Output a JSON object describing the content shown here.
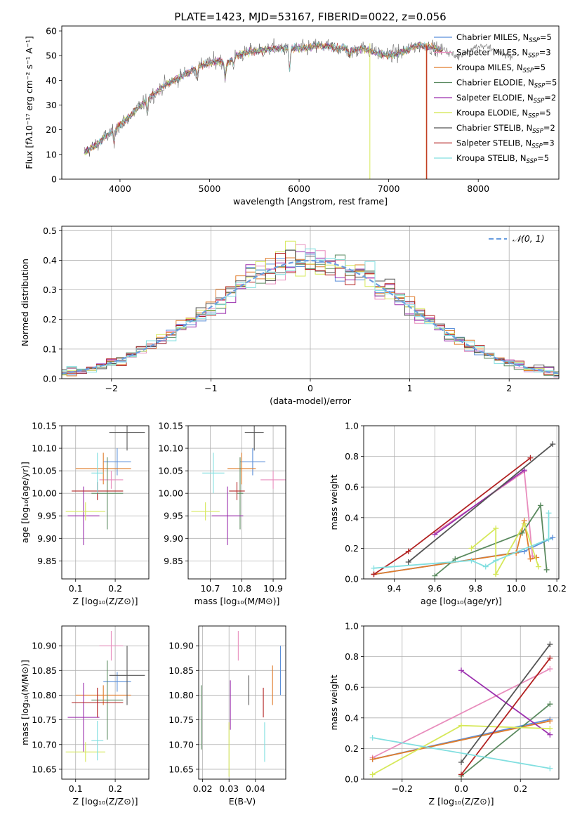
{
  "figure": {
    "title": "PLATE=1423, MJD=53167, FIBERID=0022, z=0.056"
  },
  "colors": {
    "Chabrier MILES": "#5b8fd9",
    "Salpeter MILES": "#e88dbd",
    "Kroupa MILES": "#e07c2b",
    "Chabrier ELODIE": "#5a8a5f",
    "Salpeter ELODIE": "#9b2fae",
    "Kroupa ELODIE": "#d6e85a",
    "Chabrier STELIB": "#555555",
    "Salpeter STELIB": "#b22222",
    "Kroupa STELIB": "#82dfe0",
    "normal": "#6b9fe0"
  },
  "chart_data": [
    {
      "id": "spectrum",
      "type": "line",
      "xlabel": "wavelength [Angstrom, rest frame]",
      "ylabel": "Flux [fλ10⁻¹⁷ erg cm⁻² s⁻¹ A⁻¹]",
      "xlim": [
        3350,
        8900
      ],
      "ylim": [
        0,
        62
      ],
      "xticks": [
        4000,
        5000,
        6000,
        7000,
        8000
      ],
      "yticks": [
        0,
        10,
        20,
        30,
        40,
        50,
        60
      ],
      "legend": "right",
      "legend_entries": [
        {
          "model": "Chabrier MILES",
          "label": "Chabrier MILES, N",
          "sub": "SSP",
          "n": "=5"
        },
        {
          "model": "Salpeter MILES",
          "label": "Salpeter MILES, N",
          "sub": "SSP",
          "n": "=3"
        },
        {
          "model": "Kroupa MILES",
          "label": "Kroupa MILES, N",
          "sub": "SSP",
          "n": "=5"
        },
        {
          "model": "Chabrier ELODIE",
          "label": "Chabrier ELODIE, N",
          "sub": "SSP",
          "n": "=5"
        },
        {
          "model": "Salpeter ELODIE",
          "label": "Salpeter ELODIE, N",
          "sub": "SSP",
          "n": "=2"
        },
        {
          "model": "Kroupa ELODIE",
          "label": "Kroupa ELODIE, N",
          "sub": "SSP",
          "n": "=5"
        },
        {
          "model": "Chabrier STELIB",
          "label": "Chabrier STELIB, N",
          "sub": "SSP",
          "n": "=2"
        },
        {
          "model": "Salpeter STELIB",
          "label": "Salpeter STELIB, N",
          "sub": "SSP",
          "n": "=3"
        },
        {
          "model": "Kroupa STELIB",
          "label": "Kroupa STELIB, N",
          "sub": "SSP",
          "n": "=5"
        }
      ],
      "continuum": [
        [
          3600,
          11
        ],
        [
          3700,
          13
        ],
        [
          3800,
          16
        ],
        [
          3900,
          19
        ],
        [
          4000,
          22
        ],
        [
          4100,
          25
        ],
        [
          4200,
          29
        ],
        [
          4300,
          32
        ],
        [
          4400,
          35
        ],
        [
          4500,
          38
        ],
        [
          4600,
          40
        ],
        [
          4700,
          42
        ],
        [
          4800,
          44
        ],
        [
          4900,
          46
        ],
        [
          5000,
          47
        ],
        [
          5100,
          48
        ],
        [
          5200,
          47
        ],
        [
          5300,
          50
        ],
        [
          5400,
          51
        ],
        [
          5500,
          52
        ],
        [
          5600,
          52
        ],
        [
          5700,
          53
        ],
        [
          5800,
          53
        ],
        [
          5900,
          53
        ],
        [
          6000,
          53
        ],
        [
          6100,
          53
        ],
        [
          6200,
          54
        ],
        [
          6300,
          54
        ],
        [
          6400,
          53
        ],
        [
          6500,
          53
        ],
        [
          6600,
          52
        ],
        [
          6700,
          53
        ],
        [
          6800,
          52
        ],
        [
          6900,
          51
        ],
        [
          7000,
          50
        ],
        [
          7100,
          51
        ],
        [
          7200,
          52
        ],
        [
          7300,
          54
        ],
        [
          7400,
          54
        ],
        [
          7500,
          53
        ],
        [
          7600,
          52
        ]
      ],
      "model_range": [
        3600,
        7600
      ],
      "data_range": [
        3600,
        8400
      ],
      "dips": [
        [
          3934,
          6
        ],
        [
          4305,
          5
        ],
        [
          4861,
          4
        ],
        [
          5175,
          6
        ],
        [
          5270,
          3
        ],
        [
          5893,
          10
        ],
        [
          6563,
          3
        ]
      ],
      "spikes": [
        {
          "model": "Kroupa ELODIE",
          "x": 6790,
          "y": 55
        },
        {
          "model": "Kroupa MILES",
          "x": 7420,
          "y": 55
        },
        {
          "model": "Salpeter STELIB",
          "x": 7425,
          "y": 54
        }
      ]
    },
    {
      "id": "residuals",
      "type": "histogram",
      "xlabel": "(data-model)/error",
      "ylabel": "Normed distribution",
      "xlim": [
        -2.5,
        2.5
      ],
      "ylim": [
        0,
        0.515
      ],
      "xticks": [
        -2,
        -1,
        0,
        1,
        2
      ],
      "yticks": [
        0.0,
        0.1,
        0.2,
        0.3,
        0.4,
        0.5
      ],
      "grid": true,
      "bin_width": 0.1,
      "legend": "top-right",
      "normal_label": "𝒩(0, 1)",
      "normal_label_italic": true
    },
    {
      "id": "age-Z",
      "type": "errorbar",
      "xlabel": "Z [log₁₀(Z/Z⊙)]",
      "ylabel": "age  [log₁₀(age/yr)]",
      "xlim": [
        0.065,
        0.285
      ],
      "ylim": [
        9.81,
        10.15
      ],
      "xticks": [
        0.1,
        0.2
      ],
      "yticks": [
        9.85,
        9.9,
        9.95,
        10.0,
        10.05,
        10.1,
        10.15
      ],
      "grid": true,
      "points": [
        {
          "model": "Chabrier MILES",
          "x": 0.205,
          "xerr": 0.035,
          "y": 10.07,
          "yerr": 0.03
        },
        {
          "model": "Salpeter MILES",
          "x": 0.19,
          "xerr": 0.03,
          "y": 10.03,
          "yerr": 0.02
        },
        {
          "model": "Kroupa MILES",
          "x": 0.17,
          "xerr": 0.07,
          "y": 10.055,
          "yerr": 0.035
        },
        {
          "model": "Chabrier ELODIE",
          "x": 0.18,
          "xerr": 0.04,
          "y": 10.0,
          "yerr": 0.08
        },
        {
          "model": "Salpeter ELODIE",
          "x": 0.12,
          "xerr": 0.04,
          "y": 9.95,
          "yerr": 0.065
        },
        {
          "model": "Kroupa ELODIE",
          "x": 0.125,
          "xerr": 0.05,
          "y": 9.96,
          "yerr": 0.02
        },
        {
          "model": "Chabrier STELIB",
          "x": 0.23,
          "xerr": 0.045,
          "y": 10.135,
          "yerr": 0.04
        },
        {
          "model": "Salpeter STELIB",
          "x": 0.155,
          "xerr": 0.065,
          "y": 10.005,
          "yerr": 0.02
        },
        {
          "model": "Kroupa STELIB",
          "x": 0.155,
          "xerr": 0.015,
          "y": 10.045,
          "yerr": 0.045
        }
      ]
    },
    {
      "id": "age-mass",
      "type": "errorbar",
      "xlabel": "mass [log₁₀(M/M⊙)]",
      "ylabel": "",
      "xlim": [
        10.63,
        10.94
      ],
      "ylim": [
        9.81,
        10.15
      ],
      "xticks": [
        10.7,
        10.8,
        10.9
      ],
      "yticks": [
        9.85,
        9.9,
        9.95,
        10.0,
        10.05,
        10.1,
        10.15
      ],
      "grid": true,
      "points": [
        {
          "model": "Chabrier MILES",
          "x": 10.835,
          "xerr": 0.04,
          "y": 10.07,
          "yerr": 0.03
        },
        {
          "model": "Salpeter MILES",
          "x": 10.9,
          "xerr": 0.04,
          "y": 10.03,
          "yerr": 0.02
        },
        {
          "model": "Kroupa MILES",
          "x": 10.8,
          "xerr": 0.045,
          "y": 10.055,
          "yerr": 0.035
        },
        {
          "model": "Chabrier ELODIE",
          "x": 10.795,
          "xerr": 0.01,
          "y": 10.0,
          "yerr": 0.08
        },
        {
          "model": "Salpeter ELODIE",
          "x": 10.755,
          "xerr": 0.05,
          "y": 9.95,
          "yerr": 0.065
        },
        {
          "model": "Kroupa ELODIE",
          "x": 10.685,
          "xerr": 0.045,
          "y": 9.96,
          "yerr": 0.02
        },
        {
          "model": "Chabrier STELIB",
          "x": 10.84,
          "xerr": 0.03,
          "y": 10.135,
          "yerr": 0.04
        },
        {
          "model": "Salpeter STELIB",
          "x": 10.785,
          "xerr": 0.025,
          "y": 10.005,
          "yerr": 0.02
        },
        {
          "model": "Kroupa STELIB",
          "x": 10.71,
          "xerr": 0.035,
          "y": 10.045,
          "yerr": 0.045
        }
      ]
    },
    {
      "id": "weight-age",
      "type": "line",
      "xlabel": "age  [log₁₀(age/yr)]",
      "ylabel": "mass weight",
      "xlim": [
        9.25,
        10.21
      ],
      "ylim": [
        0,
        1.0
      ],
      "xticks": [
        9.4,
        9.6,
        9.8,
        10.0,
        10.2
      ],
      "yticks": [
        0.0,
        0.2,
        0.4,
        0.6,
        0.8,
        1.0
      ],
      "grid": true,
      "series": [
        {
          "model": "Chabrier MILES",
          "x": [
            9.3,
            10.04,
            10.18
          ],
          "y": [
            0.03,
            0.18,
            0.27
          ]
        },
        {
          "model": "Salpeter MILES",
          "x": [
            9.6,
            10.04,
            10.08,
            10.1
          ],
          "y": [
            0.3,
            0.7,
            0.15,
            0.14
          ]
        },
        {
          "model": "Kroupa MILES",
          "x": [
            9.3,
            10.0,
            10.04,
            10.07,
            10.1
          ],
          "y": [
            0.03,
            0.17,
            0.38,
            0.13,
            0.14
          ]
        },
        {
          "model": "Chabrier ELODIE",
          "x": [
            9.6,
            9.7,
            10.03,
            10.12,
            10.15
          ],
          "y": [
            0.02,
            0.13,
            0.3,
            0.48,
            0.06
          ]
        },
        {
          "model": "Salpeter ELODIE",
          "x": [
            9.6,
            10.04
          ],
          "y": [
            0.29,
            0.71
          ]
        },
        {
          "model": "Kroupa ELODIE",
          "x": [
            9.78,
            9.9,
            9.9,
            10.04,
            10.11
          ],
          "y": [
            0.2,
            0.33,
            0.03,
            0.36,
            0.08
          ]
        },
        {
          "model": "Chabrier STELIB",
          "x": [
            9.47,
            10.18
          ],
          "y": [
            0.11,
            0.88
          ]
        },
        {
          "model": "Salpeter STELIB",
          "x": [
            9.3,
            9.47,
            10.07
          ],
          "y": [
            0.03,
            0.18,
            0.79
          ]
        },
        {
          "model": "Kroupa STELIB",
          "x": [
            9.3,
            9.78,
            9.85,
            9.9,
            10.16,
            10.16
          ],
          "y": [
            0.07,
            0.12,
            0.08,
            0.12,
            0.26,
            0.43
          ]
        }
      ]
    },
    {
      "id": "mass-Z",
      "type": "errorbar",
      "xlabel": "Z [log₁₀(Z/Z⊙)]",
      "ylabel": "mass [log₁₀(M/M⊙)]",
      "xlim": [
        0.065,
        0.285
      ],
      "ylim": [
        10.63,
        10.94
      ],
      "xticks": [
        0.1,
        0.2
      ],
      "yticks": [
        10.65,
        10.7,
        10.75,
        10.8,
        10.85,
        10.9
      ],
      "grid": true,
      "points": [
        {
          "model": "Chabrier MILES",
          "x": 0.205,
          "xerr": 0.035,
          "y": 10.827,
          "yerr": 0.02
        },
        {
          "model": "Salpeter MILES",
          "x": 0.19,
          "xerr": 0.03,
          "y": 10.9,
          "yerr": 0.03
        },
        {
          "model": "Kroupa MILES",
          "x": 0.17,
          "xerr": 0.07,
          "y": 10.8,
          "yerr": 0.02
        },
        {
          "model": "Chabrier ELODIE",
          "x": 0.18,
          "xerr": 0.04,
          "y": 10.79,
          "yerr": 0.08
        },
        {
          "model": "Salpeter ELODIE",
          "x": 0.12,
          "xerr": 0.04,
          "y": 10.755,
          "yerr": 0.07
        },
        {
          "model": "Kroupa ELODIE",
          "x": 0.125,
          "xerr": 0.05,
          "y": 10.685,
          "yerr": 0.02
        },
        {
          "model": "Chabrier STELIB",
          "x": 0.23,
          "xerr": 0.045,
          "y": 10.84,
          "yerr": 0.06
        },
        {
          "model": "Salpeter STELIB",
          "x": 0.155,
          "xerr": 0.065,
          "y": 10.785,
          "yerr": 0.03
        },
        {
          "model": "Kroupa STELIB",
          "x": 0.155,
          "xerr": 0.015,
          "y": 10.708,
          "yerr": 0.04
        }
      ]
    },
    {
      "id": "mass-EBV",
      "type": "errorbar",
      "xlabel": "E(B-V)",
      "ylabel": "",
      "xlim": [
        0.0185,
        0.0515
      ],
      "ylim": [
        10.63,
        10.94
      ],
      "xticks": [
        0.02,
        0.03,
        0.04
      ],
      "yticks": [
        10.65,
        10.7,
        10.75,
        10.8,
        10.85,
        10.9
      ],
      "grid": true,
      "points": [
        {
          "model": "Chabrier MILES",
          "x": 0.0495,
          "y": 10.85,
          "yerr": 0.05
        },
        {
          "model": "Salpeter MILES",
          "x": 0.0335,
          "y": 10.9,
          "yerr": 0.03
        },
        {
          "model": "Kroupa MILES",
          "x": 0.0465,
          "y": 10.82,
          "yerr": 0.04
        },
        {
          "model": "Chabrier ELODIE",
          "x": 0.0195,
          "y": 10.755,
          "yerr": 0.065
        },
        {
          "model": "Salpeter ELODIE",
          "x": 0.0305,
          "y": 10.78,
          "yerr": 0.05
        },
        {
          "model": "Kroupa ELODIE",
          "x": 0.03,
          "y": 10.69,
          "yerr": 0.055
        },
        {
          "model": "Chabrier STELIB",
          "x": 0.0375,
          "y": 10.81,
          "yerr": 0.03
        },
        {
          "model": "Salpeter STELIB",
          "x": 0.043,
          "y": 10.785,
          "yerr": 0.03
        },
        {
          "model": "Kroupa STELIB",
          "x": 0.0435,
          "y": 10.705,
          "yerr": 0.04
        }
      ]
    },
    {
      "id": "weight-Z",
      "type": "line",
      "xlabel": "Z [log₁₀(Z/Z⊙)]",
      "ylabel": "mass weight",
      "xlim": [
        -0.33,
        0.33
      ],
      "ylim": [
        0,
        1.0
      ],
      "xticks": [
        -0.2,
        0.0,
        0.2
      ],
      "yticks": [
        0.0,
        0.2,
        0.4,
        0.6,
        0.8,
        1.0
      ],
      "grid": true,
      "series": [
        {
          "model": "Chabrier MILES",
          "x": [
            -0.3,
            0.3
          ],
          "y": [
            0.13,
            0.39
          ]
        },
        {
          "model": "Salpeter MILES",
          "x": [
            -0.3,
            0.3
          ],
          "y": [
            0.14,
            0.72
          ]
        },
        {
          "model": "Kroupa MILES",
          "x": [
            -0.3,
            0.3
          ],
          "y": [
            0.13,
            0.38
          ]
        },
        {
          "model": "Chabrier ELODIE",
          "x": [
            0.0,
            0.3
          ],
          "y": [
            0.02,
            0.49
          ]
        },
        {
          "model": "Salpeter ELODIE",
          "x": [
            0.0,
            0.3
          ],
          "y": [
            0.71,
            0.29
          ]
        },
        {
          "model": "Kroupa ELODIE",
          "x": [
            -0.3,
            0.0,
            0.3
          ],
          "y": [
            0.03,
            0.35,
            0.33
          ]
        },
        {
          "model": "Chabrier STELIB",
          "x": [
            0.0,
            0.3
          ],
          "y": [
            0.11,
            0.88
          ]
        },
        {
          "model": "Salpeter STELIB",
          "x": [
            0.0,
            0.3
          ],
          "y": [
            0.03,
            0.79
          ]
        },
        {
          "model": "Kroupa STELIB",
          "x": [
            -0.3,
            0.3
          ],
          "y": [
            0.27,
            0.07
          ]
        }
      ]
    }
  ]
}
